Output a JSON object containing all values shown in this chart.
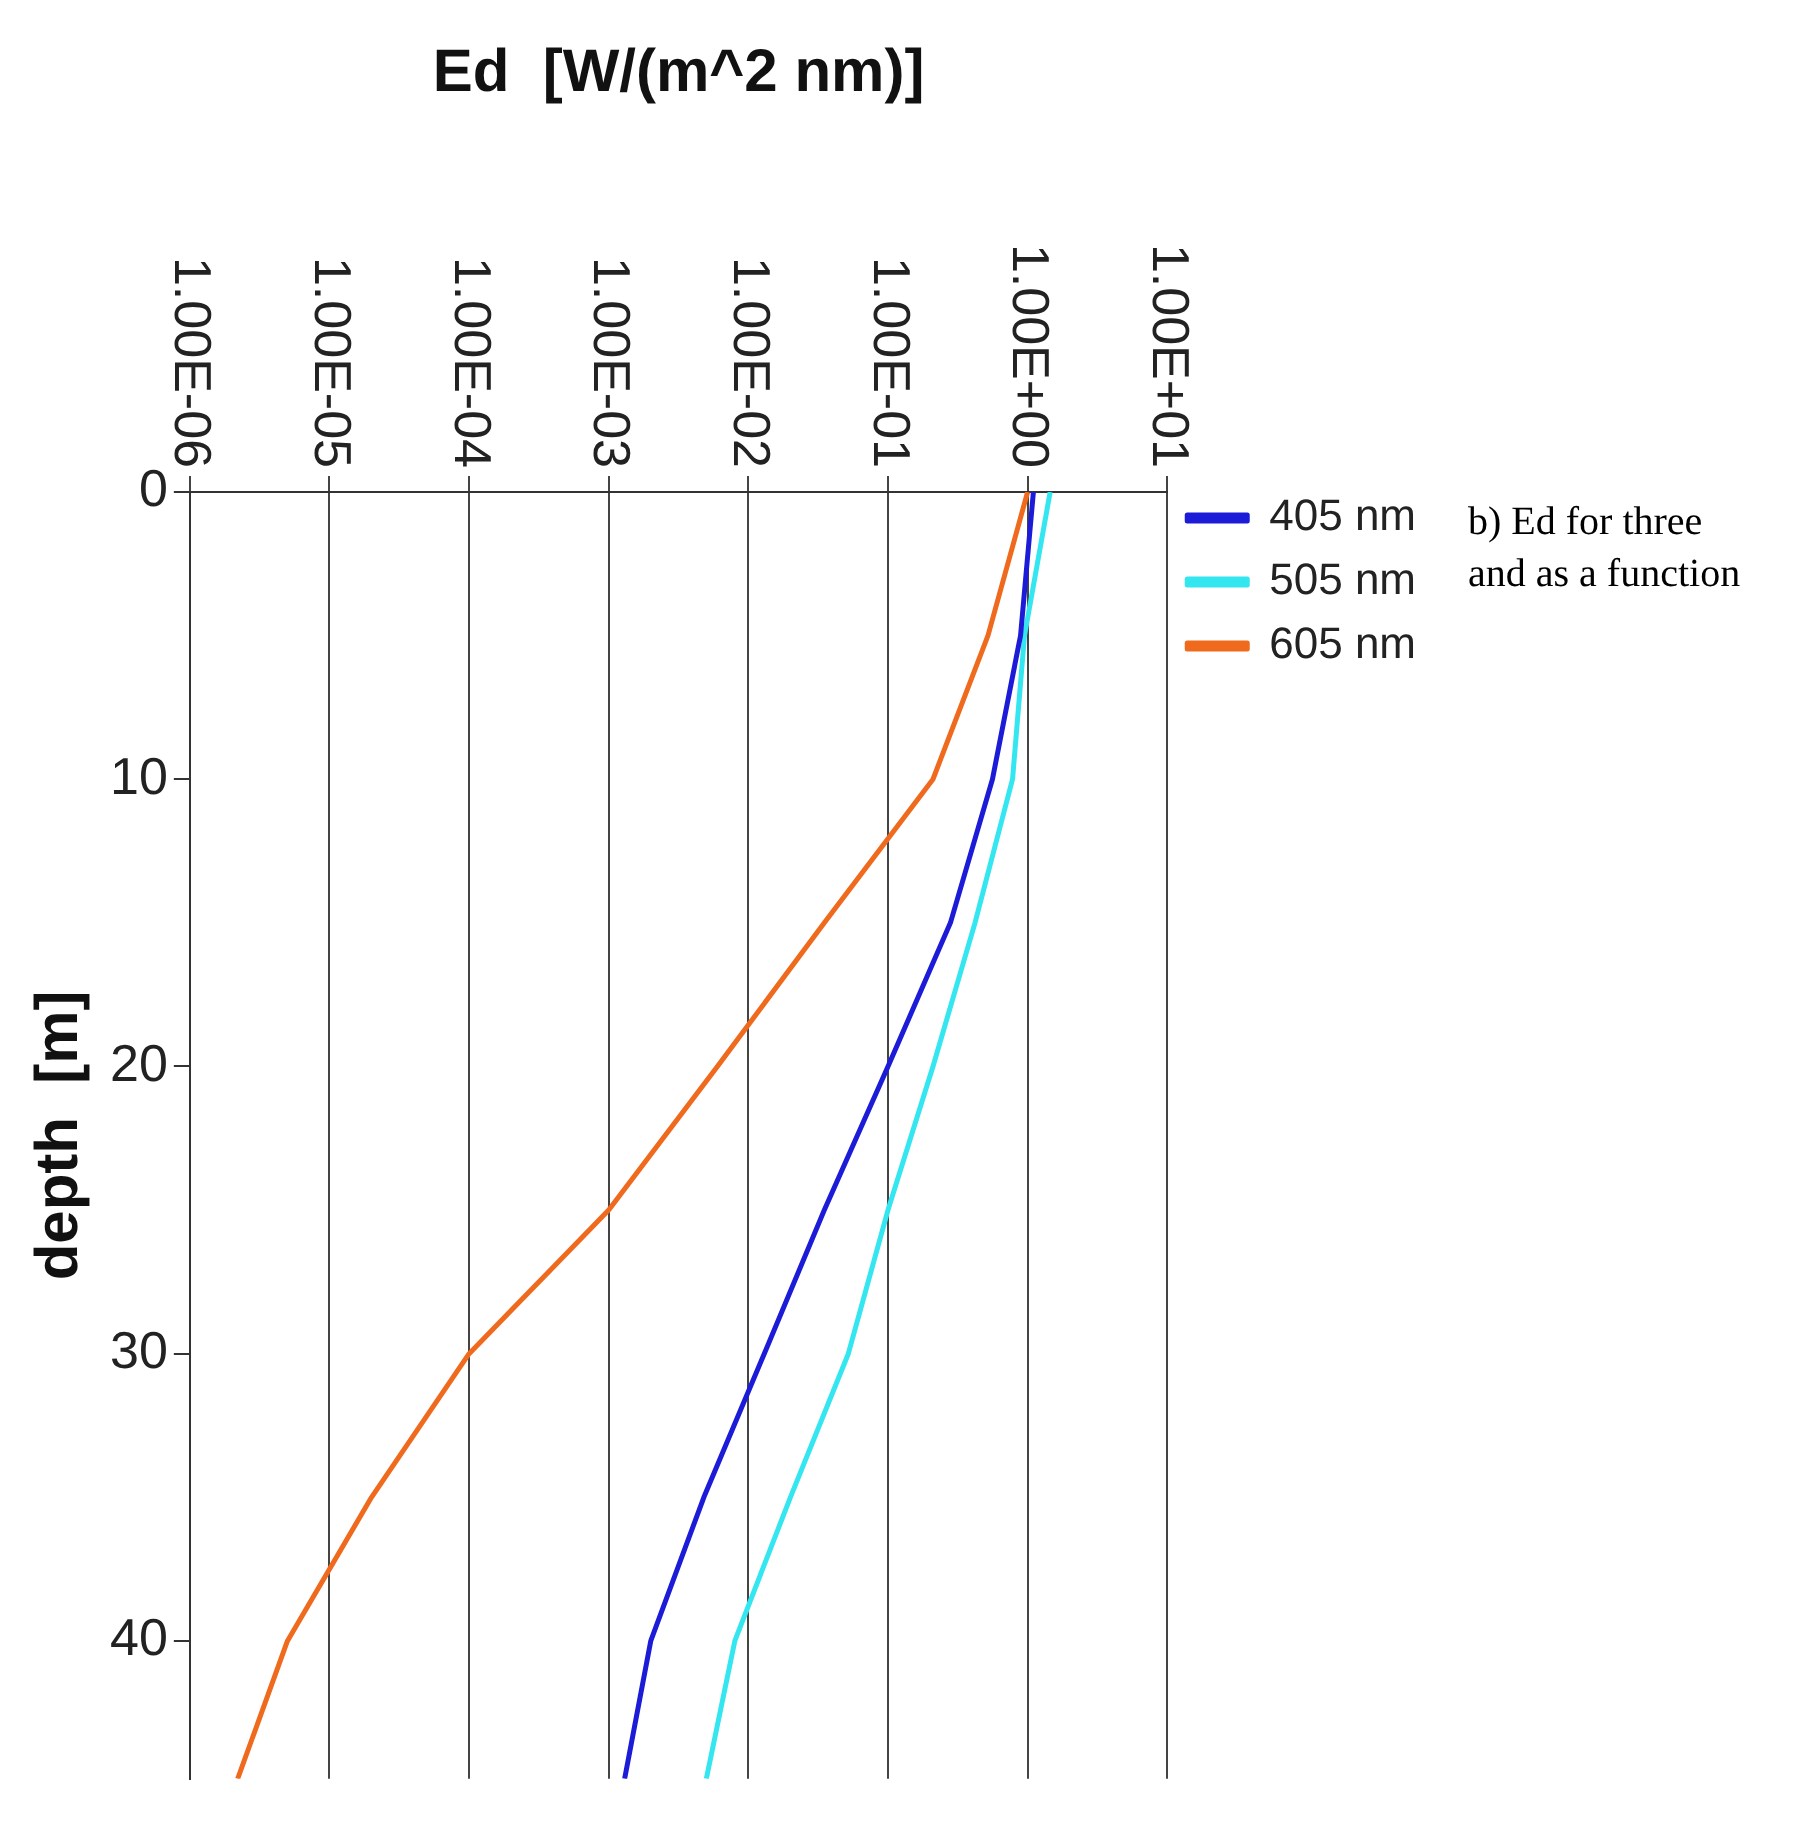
{
  "chart_data": {
    "type": "line",
    "xlabel": "Ed  [W/(m^2 nm)]",
    "ylabel": "depth  [m]",
    "log": "x",
    "grid": "x",
    "legend": "top right",
    "marker": "none",
    "line_style": "solid",
    "xlim": [
      1e-06,
      10
    ],
    "xticks": [
      {
        "value": 1e-06,
        "label": "1.00E-06"
      },
      {
        "value": 1e-05,
        "label": "1.00E-05"
      },
      {
        "value": 0.0001,
        "label": "1.00E-04"
      },
      {
        "value": 0.001,
        "label": "1.00E-03"
      },
      {
        "value": 0.01,
        "label": "1.00E-02"
      },
      {
        "value": 0.1,
        "label": "1.00E-01"
      },
      {
        "value": 1,
        "label": "1.00E+00"
      },
      {
        "value": 10,
        "label": "1.00E+01"
      }
    ],
    "ylim": [
      44.8,
      0
    ],
    "yticks": [
      0,
      10,
      20,
      30,
      40
    ],
    "series": [
      {
        "name": "405 nm",
        "color": "#1c1cd8",
        "x": [
          1.1,
          0.89,
          0.56,
          0.28,
          0.1,
          0.035,
          0.013,
          0.0048,
          0.002,
          0.0013
        ],
        "values": [
          0,
          5,
          10,
          15,
          20,
          25,
          30,
          35,
          40,
          44.8
        ]
      },
      {
        "name": "505 nm",
        "color": "#33e6f0",
        "x": [
          1.45,
          0.95,
          0.78,
          0.42,
          0.21,
          0.1,
          0.052,
          0.02,
          0.008,
          0.005
        ],
        "values": [
          0,
          5,
          10,
          15,
          20,
          25,
          30,
          35,
          40,
          44.8
        ]
      },
      {
        "name": "605 nm",
        "color": "#f06a1e",
        "x": [
          1.0,
          0.52,
          0.21,
          0.035,
          0.006,
          0.001,
          0.0001,
          2e-05,
          5e-06,
          2.2e-06
        ],
        "values": [
          0,
          5,
          10,
          15,
          20,
          25,
          30,
          35,
          40,
          44.8
        ]
      }
    ],
    "annotations": [
      "b) Ed for three",
      "and as a function"
    ]
  }
}
